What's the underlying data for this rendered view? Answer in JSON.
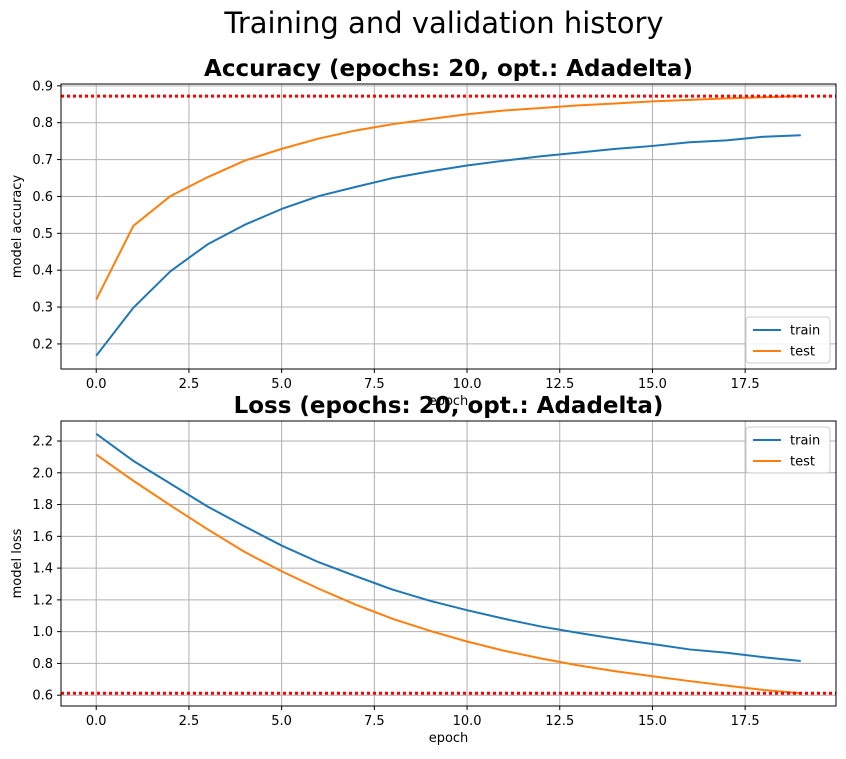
{
  "figure": {
    "suptitle": "Training and validation history"
  },
  "chart_data": [
    {
      "type": "line",
      "title": "Accuracy (epochs: 20, opt.: Adadelta)",
      "xlabel": "epoch",
      "ylabel": "model accuracy",
      "xlim": [
        -0.95,
        19.95
      ],
      "ylim": [
        0.132,
        0.905
      ],
      "xticks": [
        0.0,
        2.5,
        5.0,
        7.5,
        10.0,
        12.5,
        15.0,
        17.5
      ],
      "xtick_labels": [
        "0.0",
        "2.5",
        "5.0",
        "7.5",
        "10.0",
        "12.5",
        "15.0",
        "17.5"
      ],
      "yticks": [
        0.2,
        0.3,
        0.4,
        0.5,
        0.6,
        0.7,
        0.8,
        0.9
      ],
      "ytick_labels": [
        "0.2",
        "0.3",
        "0.4",
        "0.5",
        "0.6",
        "0.7",
        "0.8",
        "0.9"
      ],
      "grid": true,
      "legend_position": "lower-right",
      "x": [
        0,
        1,
        2,
        3,
        4,
        5,
        6,
        7,
        8,
        9,
        10,
        11,
        12,
        13,
        14,
        15,
        16,
        17,
        18,
        19
      ],
      "series": [
        {
          "name": "train",
          "color": "#1f77b4",
          "values": [
            0.168,
            0.298,
            0.397,
            0.47,
            0.523,
            0.566,
            0.601,
            0.626,
            0.65,
            0.668,
            0.684,
            0.697,
            0.709,
            0.719,
            0.729,
            0.737,
            0.747,
            0.752,
            0.762,
            0.766
          ]
        },
        {
          "name": "test",
          "color": "#ff7f0e",
          "values": [
            0.32,
            0.52,
            0.601,
            0.652,
            0.697,
            0.729,
            0.757,
            0.779,
            0.796,
            0.81,
            0.823,
            0.833,
            0.84,
            0.847,
            0.852,
            0.858,
            0.862,
            0.866,
            0.869,
            0.872
          ]
        }
      ],
      "hlines": [
        {
          "y": 0.872,
          "color": "#ff0000",
          "style": "dotted"
        }
      ]
    },
    {
      "type": "line",
      "title": "Loss (epochs: 20, opt.: Adadelta)",
      "xlabel": "epoch",
      "ylabel": "model loss",
      "xlim": [
        -0.95,
        19.95
      ],
      "ylim": [
        0.532,
        2.326
      ],
      "xticks": [
        0.0,
        2.5,
        5.0,
        7.5,
        10.0,
        12.5,
        15.0,
        17.5
      ],
      "xtick_labels": [
        "0.0",
        "2.5",
        "5.0",
        "7.5",
        "10.0",
        "12.5",
        "15.0",
        "17.5"
      ],
      "yticks": [
        0.6,
        0.8,
        1.0,
        1.2,
        1.4,
        1.6,
        1.8,
        2.0,
        2.2
      ],
      "ytick_labels": [
        "0.6",
        "0.8",
        "1.0",
        "1.2",
        "1.4",
        "1.6",
        "1.8",
        "2.0",
        "2.2"
      ],
      "grid": true,
      "legend_position": "upper-right",
      "x": [
        0,
        1,
        2,
        3,
        4,
        5,
        6,
        7,
        8,
        9,
        10,
        11,
        12,
        13,
        14,
        15,
        16,
        17,
        18,
        19
      ],
      "series": [
        {
          "name": "train",
          "color": "#1f77b4",
          "values": [
            2.245,
            2.075,
            1.932,
            1.788,
            1.663,
            1.542,
            1.437,
            1.349,
            1.264,
            1.194,
            1.135,
            1.081,
            1.032,
            0.992,
            0.955,
            0.922,
            0.888,
            0.867,
            0.839,
            0.815
          ]
        },
        {
          "name": "test",
          "color": "#ff7f0e",
          "values": [
            2.115,
            1.95,
            1.795,
            1.645,
            1.502,
            1.38,
            1.27,
            1.17,
            1.08,
            1.005,
            0.938,
            0.88,
            0.831,
            0.788,
            0.751,
            0.719,
            0.689,
            0.66,
            0.633,
            0.612
          ]
        }
      ],
      "hlines": [
        {
          "y": 0.612,
          "color": "#ff0000",
          "style": "dotted"
        }
      ]
    }
  ]
}
